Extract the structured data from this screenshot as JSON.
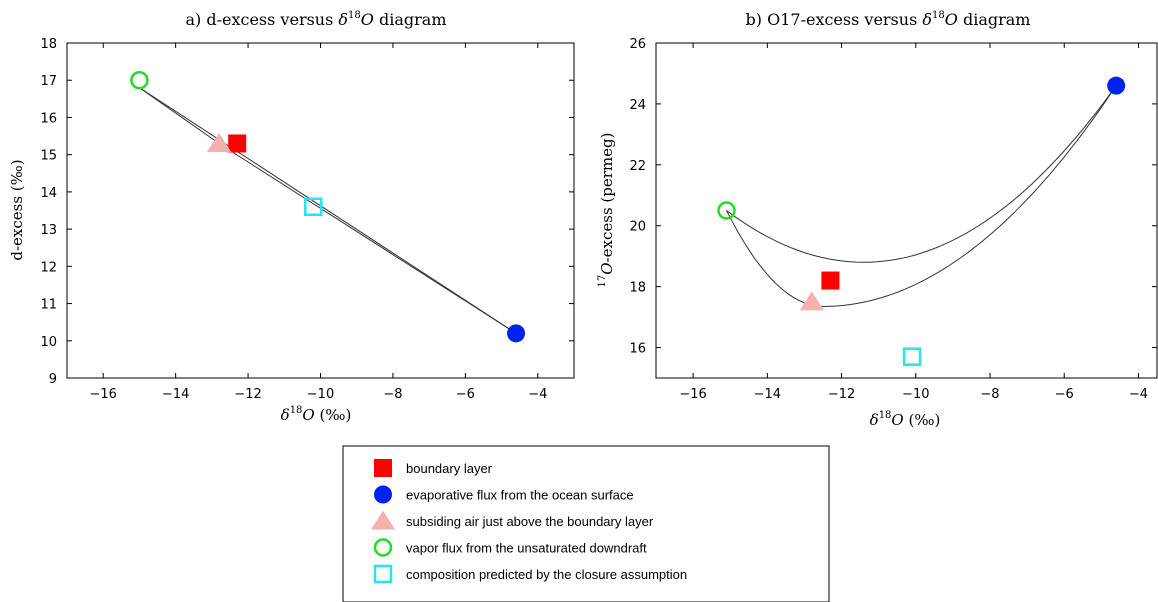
{
  "chart_data": [
    {
      "type": "scatter",
      "title": "a) d-excess versus δ18O diagram",
      "title_parts": {
        "pre": "a) d-excess versus ",
        "delta": "δ",
        "sup": "18",
        "italic": "O",
        "post": " diagram"
      },
      "xlabel_parts": {
        "delta": "δ",
        "sup": "18",
        "italic": "O",
        "post": " (‰)"
      },
      "ylabel": "d-excess (‰)",
      "xlim": [
        -17,
        -3
      ],
      "ylim": [
        9,
        18
      ],
      "xticks": [
        "−16",
        "−14",
        "−12",
        "−10",
        "−8",
        "−6",
        "−4"
      ],
      "xtick_values": [
        -16,
        -14,
        -12,
        -10,
        -8,
        -6,
        -4
      ],
      "yticks": [
        "9",
        "10",
        "11",
        "12",
        "13",
        "14",
        "15",
        "16",
        "17",
        "18"
      ],
      "ytick_values": [
        9,
        10,
        11,
        12,
        13,
        14,
        15,
        16,
        17,
        18
      ],
      "points": [
        {
          "series": "boundary layer",
          "x": -12.3,
          "y": 15.3
        },
        {
          "series": "evaporative flux from the ocean surface",
          "x": -4.6,
          "y": 10.2
        },
        {
          "series": "subsiding air just above the boundary layer",
          "x": -12.8,
          "y": 15.3
        },
        {
          "series": "vapor flux from the unsaturated downdraft",
          "x": -15.0,
          "y": 17.0
        },
        {
          "series": "composition predicted by the closure assumption",
          "x": -10.2,
          "y": 13.6
        }
      ],
      "mixing_lines": [
        {
          "from": [
            -15.0,
            16.8
          ],
          "to": [
            -4.6,
            10.2
          ]
        },
        {
          "from": [
            -15.0,
            16.8
          ],
          "to": [
            -12.8,
            15.3
          ],
          "then": [
            -4.6,
            10.2
          ]
        }
      ],
      "grid": false
    },
    {
      "type": "scatter",
      "title": "b) O17-excess versus δ18O diagram",
      "title_parts": {
        "pre": "b) O17-excess versus ",
        "delta": "δ",
        "sup": "18",
        "italic": "O",
        "post": " diagram"
      },
      "xlabel_parts": {
        "delta": "δ",
        "sup": "18",
        "italic": "O",
        "post": " (‰)"
      },
      "ylabel_parts": {
        "sup": "17",
        "italic": "O",
        "post": "-excess (permeg)"
      },
      "xlim": [
        -17,
        -3.5
      ],
      "ylim": [
        15,
        26
      ],
      "xticks": [
        "−16",
        "−14",
        "−12",
        "−10",
        "−8",
        "−6",
        "−4"
      ],
      "xtick_values": [
        -16,
        -14,
        -12,
        -10,
        -8,
        -6,
        -4
      ],
      "yticks": [
        "16",
        "18",
        "20",
        "22",
        "24",
        "26"
      ],
      "ytick_values": [
        16,
        18,
        20,
        22,
        24,
        26
      ],
      "points": [
        {
          "series": "boundary layer",
          "x": -12.3,
          "y": 18.2
        },
        {
          "series": "evaporative flux from the ocean surface",
          "x": -4.6,
          "y": 24.6
        },
        {
          "series": "subsiding air just above the boundary layer",
          "x": -12.8,
          "y": 17.5
        },
        {
          "series": "vapor flux from the unsaturated downdraft",
          "x": -15.1,
          "y": 20.5
        },
        {
          "series": "composition predicted by the closure assumption",
          "x": -10.1,
          "y": 15.7
        }
      ],
      "mixing_curves": [
        {
          "from": [
            -15.1,
            20.5
          ],
          "to": [
            -4.6,
            24.6
          ],
          "min": [
            -11.4,
            18.8
          ]
        },
        {
          "from": [
            -15.1,
            20.5
          ],
          "via": [
            -12.5,
            17.35
          ],
          "to": [
            -4.6,
            24.6
          ]
        }
      ],
      "grid": false
    }
  ],
  "legend": {
    "placement": "bottom-center",
    "entries": [
      {
        "label": "boundary layer",
        "marker": "filled-square",
        "color": "#ff0000"
      },
      {
        "label": "evaporative flux from the ocean surface",
        "marker": "filled-circle",
        "color": "#0022ee"
      },
      {
        "label": "subsiding air just above the boundary layer",
        "marker": "filled-triangle",
        "color": "#f5b0b0"
      },
      {
        "label": "vapor flux from the unsaturated downdraft",
        "marker": "open-circle",
        "color": "#22dd22"
      },
      {
        "label": "composition predicted by the closure assumption",
        "marker": "open-square",
        "color": "#22e5f0"
      }
    ]
  }
}
